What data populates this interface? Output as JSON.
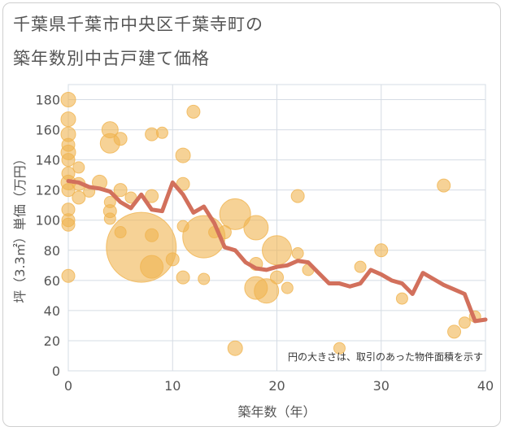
{
  "chart_data": {
    "type": "scatter",
    "title": [
      "千葉県千葉市中央区千葉寺町の",
      "築年数別中古戸建て価格"
    ],
    "xlabel": "築年数（年）",
    "ylabel": "坪（3.3㎡）単価（万円）",
    "xlim": [
      0,
      40
    ],
    "ylim": [
      0,
      190
    ],
    "xticks": [
      0,
      10,
      20,
      30,
      40
    ],
    "yticks": [
      0,
      20,
      40,
      60,
      80,
      100,
      120,
      140,
      160,
      180
    ],
    "note": "円の大きさは、取引のあった物件面積を示す",
    "colors": {
      "bubble": "#f0b450",
      "line": "#d2705c",
      "grid": "#d5dce4",
      "plot_bg": "#ffffff"
    },
    "points": [
      {
        "x": 0,
        "y": 180,
        "s": 9
      },
      {
        "x": 0,
        "y": 167,
        "s": 9
      },
      {
        "x": 0,
        "y": 157,
        "s": 9
      },
      {
        "x": 0,
        "y": 150,
        "s": 8
      },
      {
        "x": 0,
        "y": 145,
        "s": 9
      },
      {
        "x": 0,
        "y": 140,
        "s": 8
      },
      {
        "x": 0,
        "y": 131,
        "s": 8
      },
      {
        "x": 0,
        "y": 125,
        "s": 9
      },
      {
        "x": 0,
        "y": 120,
        "s": 8
      },
      {
        "x": 0,
        "y": 107,
        "s": 8
      },
      {
        "x": 0,
        "y": 100,
        "s": 8
      },
      {
        "x": 0,
        "y": 97,
        "s": 8
      },
      {
        "x": 0,
        "y": 63,
        "s": 8
      },
      {
        "x": 1,
        "y": 135,
        "s": 7
      },
      {
        "x": 1,
        "y": 124,
        "s": 8
      },
      {
        "x": 1,
        "y": 115,
        "s": 8
      },
      {
        "x": 2,
        "y": 119,
        "s": 7
      },
      {
        "x": 3,
        "y": 125,
        "s": 9
      },
      {
        "x": 4,
        "y": 160,
        "s": 10
      },
      {
        "x": 4,
        "y": 151,
        "s": 12
      },
      {
        "x": 4,
        "y": 112,
        "s": 7
      },
      {
        "x": 4,
        "y": 106,
        "s": 8
      },
      {
        "x": 4,
        "y": 101,
        "s": 7
      },
      {
        "x": 5,
        "y": 154,
        "s": 8
      },
      {
        "x": 5,
        "y": 120,
        "s": 8
      },
      {
        "x": 5,
        "y": 92,
        "s": 7
      },
      {
        "x": 6,
        "y": 115,
        "s": 7
      },
      {
        "x": 7,
        "y": 82,
        "s": 43
      },
      {
        "x": 8,
        "y": 157,
        "s": 8
      },
      {
        "x": 8,
        "y": 116,
        "s": 8
      },
      {
        "x": 8,
        "y": 90,
        "s": 8
      },
      {
        "x": 8,
        "y": 69,
        "s": 14
      },
      {
        "x": 9,
        "y": 158,
        "s": 7
      },
      {
        "x": 10,
        "y": 74,
        "s": 8
      },
      {
        "x": 11,
        "y": 143,
        "s": 9
      },
      {
        "x": 11,
        "y": 124,
        "s": 8
      },
      {
        "x": 11,
        "y": 96,
        "s": 7
      },
      {
        "x": 11,
        "y": 62,
        "s": 8
      },
      {
        "x": 12,
        "y": 172,
        "s": 8
      },
      {
        "x": 13,
        "y": 89,
        "s": 26
      },
      {
        "x": 13,
        "y": 61,
        "s": 7
      },
      {
        "x": 14,
        "y": 92,
        "s": 7
      },
      {
        "x": 15,
        "y": 92,
        "s": 8
      },
      {
        "x": 16,
        "y": 104,
        "s": 19
      },
      {
        "x": 16,
        "y": 15,
        "s": 9
      },
      {
        "x": 18,
        "y": 95,
        "s": 15
      },
      {
        "x": 18,
        "y": 71,
        "s": 8
      },
      {
        "x": 18,
        "y": 55,
        "s": 14
      },
      {
        "x": 19,
        "y": 53,
        "s": 15
      },
      {
        "x": 20,
        "y": 80,
        "s": 18
      },
      {
        "x": 20,
        "y": 62,
        "s": 8
      },
      {
        "x": 21,
        "y": 55,
        "s": 7
      },
      {
        "x": 22,
        "y": 116,
        "s": 8
      },
      {
        "x": 22,
        "y": 78,
        "s": 7
      },
      {
        "x": 23,
        "y": 67,
        "s": 7
      },
      {
        "x": 26,
        "y": 15,
        "s": 7
      },
      {
        "x": 28,
        "y": 69,
        "s": 7
      },
      {
        "x": 30,
        "y": 80,
        "s": 8
      },
      {
        "x": 32,
        "y": 48,
        "s": 7
      },
      {
        "x": 36,
        "y": 123,
        "s": 8
      },
      {
        "x": 37,
        "y": 26,
        "s": 8
      },
      {
        "x": 38,
        "y": 32,
        "s": 7
      },
      {
        "x": 39,
        "y": 36,
        "s": 7
      }
    ],
    "line": {
      "x": [
        0,
        1,
        2,
        3,
        4,
        5,
        6,
        7,
        8,
        9,
        10,
        11,
        12,
        13,
        14,
        15,
        16,
        17,
        18,
        19,
        20,
        21,
        22,
        23,
        24,
        25,
        26,
        27,
        28,
        29,
        30,
        31,
        32,
        33,
        34,
        35,
        36,
        37,
        38,
        39,
        40
      ],
      "y": [
        126,
        125,
        122,
        121,
        119,
        112,
        108,
        117,
        107,
        106,
        125,
        117,
        105,
        109,
        98,
        82,
        80,
        72,
        68,
        67,
        69,
        70,
        73,
        72,
        65,
        58,
        58,
        56,
        58,
        67,
        64,
        60,
        58,
        51,
        65,
        61,
        57,
        54,
        51,
        33,
        34
      ]
    }
  }
}
